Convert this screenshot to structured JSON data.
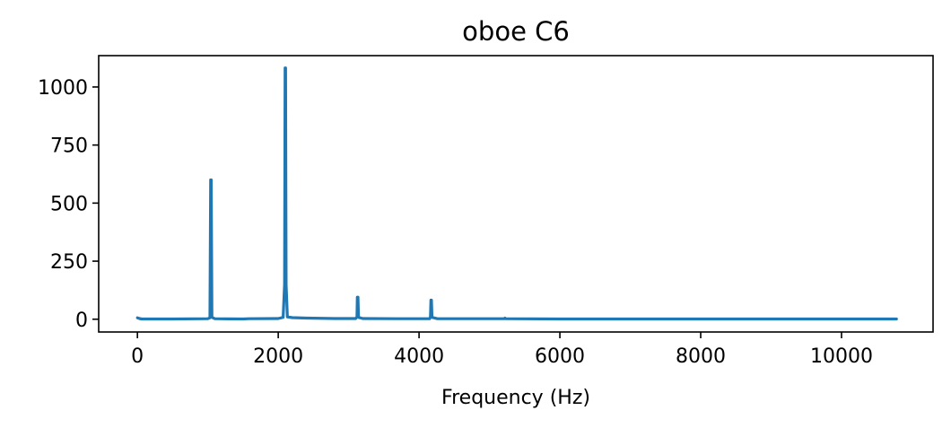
{
  "chart_data": {
    "type": "line",
    "title": "oboe C6",
    "xlabel": "Frequency (Hz)",
    "ylabel": "",
    "xlim": [
      -550,
      11300
    ],
    "ylim": [
      -55,
      1135
    ],
    "xticks": [
      0,
      2000,
      4000,
      6000,
      8000,
      10000
    ],
    "xtick_labels": [
      "0",
      "2000",
      "4000",
      "6000",
      "8000",
      "10000"
    ],
    "yticks": [
      0,
      250,
      500,
      750,
      1000
    ],
    "ytick_labels": [
      "0",
      "250",
      "500",
      "750",
      "1000"
    ],
    "grid": false,
    "legend": "none",
    "color": "#1f77b4",
    "series": [
      {
        "values": [
          [
            0,
            6
          ],
          [
            30,
            3
          ],
          [
            60,
            1
          ],
          [
            500,
            1
          ],
          [
            1000,
            2
          ],
          [
            1030,
            6
          ],
          [
            1040,
            600
          ],
          [
            1048,
            600
          ],
          [
            1058,
            8
          ],
          [
            1100,
            2
          ],
          [
            1500,
            1
          ],
          [
            1580,
            2
          ],
          [
            2000,
            3
          ],
          [
            2070,
            8
          ],
          [
            2090,
            150
          ],
          [
            2098,
            1082
          ],
          [
            2104,
            1082
          ],
          [
            2112,
            150
          ],
          [
            2130,
            10
          ],
          [
            2200,
            7
          ],
          [
            2400,
            5
          ],
          [
            2800,
            3
          ],
          [
            3100,
            3
          ],
          [
            3118,
            10
          ],
          [
            3124,
            95
          ],
          [
            3132,
            95
          ],
          [
            3140,
            8
          ],
          [
            3200,
            3
          ],
          [
            3700,
            2
          ],
          [
            4150,
            2
          ],
          [
            4162,
            10
          ],
          [
            4168,
            82
          ],
          [
            4176,
            82
          ],
          [
            4184,
            8
          ],
          [
            4260,
            2
          ],
          [
            5000,
            2
          ],
          [
            5210,
            2
          ],
          [
            5220,
            5
          ],
          [
            5230,
            2
          ],
          [
            6000,
            1
          ],
          [
            8000,
            1
          ],
          [
            10000,
            1
          ],
          [
            10780,
            1
          ]
        ]
      }
    ]
  }
}
